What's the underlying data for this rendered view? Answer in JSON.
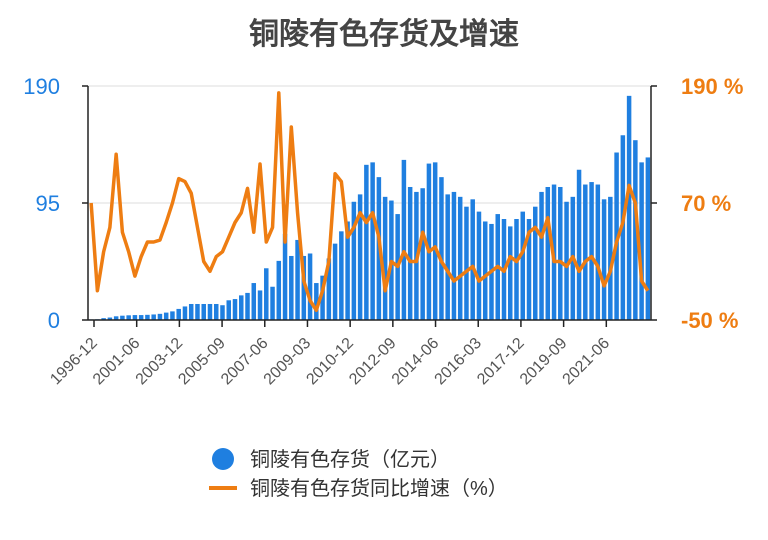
{
  "chart_data": {
    "type": "bar+line",
    "title": "铜陵有色存货及增速",
    "colors": {
      "bar": "#1f7fe0",
      "line": "#ee7d12",
      "left_axis_text": "#1f7fe0",
      "right_axis_text": "#ee7d12",
      "grid": "#dddddd"
    },
    "left_axis": {
      "min": 0,
      "max": 190,
      "ticks": [
        "0",
        "95",
        "190"
      ]
    },
    "right_axis": {
      "min": -50,
      "max": 190,
      "ticks": [
        "-50 %",
        "70 %",
        "190 %"
      ]
    },
    "x_tick_labels": [
      "1996-12",
      "2001-06",
      "2003-12",
      "2005-09",
      "2007-06",
      "2009-03",
      "2010-12",
      "2012-09",
      "2014-06",
      "2016-03",
      "2017-12",
      "2019-09",
      "2021-06"
    ],
    "legend_position": "bottom",
    "series": [
      {
        "name": "铜陵有色存货（亿元）",
        "type": "bar",
        "axis": "left",
        "values": [
          0.5,
          0.6,
          1.5,
          2,
          3,
          3.5,
          3.8,
          4,
          4,
          4.2,
          4.5,
          5,
          6,
          7,
          9,
          11,
          13,
          13,
          13,
          13,
          13,
          12,
          16,
          17,
          20,
          22,
          30,
          24,
          42,
          27,
          48,
          70,
          52,
          65,
          52,
          54,
          30,
          36,
          50,
          62,
          72,
          80,
          96,
          102,
          126,
          128,
          116,
          100,
          97,
          86,
          130,
          108,
          104,
          107,
          127,
          128,
          116,
          102,
          104,
          100,
          92,
          98,
          88,
          80,
          78,
          86,
          82,
          76,
          82,
          88,
          82,
          92,
          104,
          108,
          110,
          108,
          96,
          100,
          122,
          110,
          112,
          110,
          98,
          100,
          136,
          150,
          182,
          146,
          128,
          132
        ],
        "growth_values": [
          70,
          -20,
          20,
          45,
          120,
          40,
          20,
          -5,
          15,
          30,
          30,
          32,
          50,
          70,
          95,
          92,
          80,
          45,
          10,
          0,
          15,
          20,
          35,
          50,
          60,
          85,
          40,
          110,
          30,
          45,
          183,
          30,
          148,
          60,
          -10,
          -30,
          -40,
          -20,
          10,
          100,
          92,
          35,
          45,
          60,
          50,
          60,
          35,
          -20,
          10,
          5,
          20,
          10,
          10,
          40,
          20,
          25,
          10,
          0,
          -10,
          -5,
          0,
          5,
          -10,
          -5,
          0,
          5,
          0,
          15,
          10,
          20,
          40,
          45,
          35,
          55,
          10,
          10,
          5,
          15,
          0,
          10,
          15,
          5,
          -15,
          0,
          30,
          50,
          88,
          70,
          -10,
          -20
        ],
        "note_growth": "growth_values belong to the line series"
      },
      {
        "name": "铜陵有色存货同比增速（%）",
        "type": "line",
        "axis": "right",
        "values": [
          70,
          -20,
          20,
          45,
          120,
          40,
          20,
          -5,
          15,
          30,
          30,
          32,
          50,
          70,
          95,
          92,
          80,
          45,
          10,
          0,
          15,
          20,
          35,
          50,
          60,
          85,
          40,
          110,
          30,
          45,
          183,
          30,
          148,
          60,
          -10,
          -30,
          -40,
          -20,
          10,
          100,
          92,
          35,
          45,
          60,
          50,
          60,
          35,
          -20,
          10,
          5,
          20,
          10,
          10,
          40,
          20,
          25,
          10,
          0,
          -10,
          -5,
          0,
          5,
          -10,
          -5,
          0,
          5,
          0,
          15,
          10,
          20,
          40,
          45,
          35,
          55,
          10,
          10,
          5,
          15,
          0,
          10,
          15,
          5,
          -15,
          0,
          30,
          50,
          88,
          70,
          -10,
          -20
        ]
      }
    ]
  },
  "legend": {
    "bar_label": "铜陵有色存货（亿元）",
    "line_label": "铜陵有色存货同比增速（%）"
  }
}
